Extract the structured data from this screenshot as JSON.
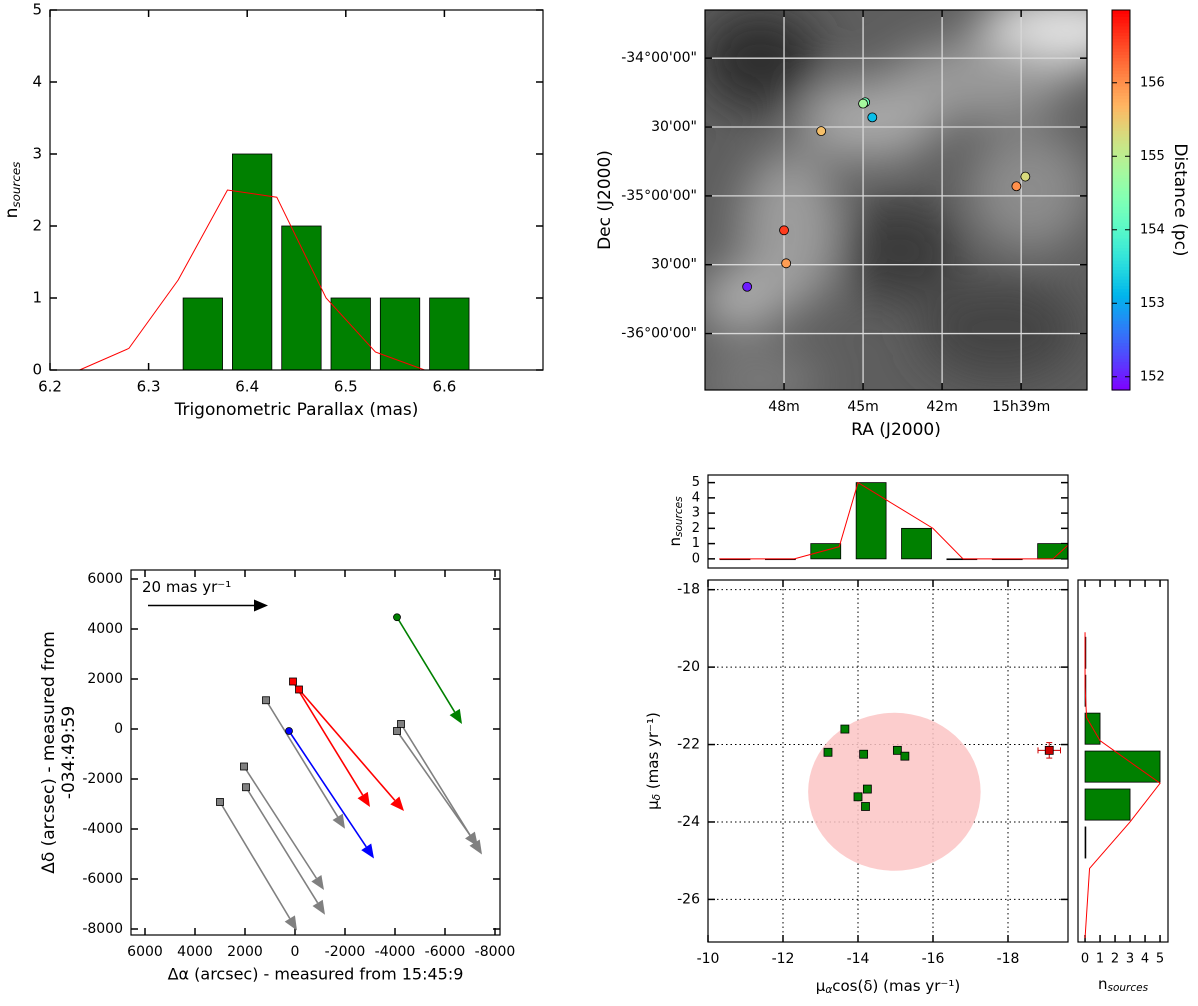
{
  "chart_data": [
    {
      "type": "histogram",
      "bins": [
        6.33,
        6.38,
        6.43,
        6.48,
        6.53,
        6.58,
        6.63
      ],
      "counts": [
        1,
        3,
        2,
        1,
        1,
        1
      ],
      "rwidth": 0.8,
      "color": "#008000",
      "xlim": [
        6.2,
        6.7
      ],
      "ylim": [
        0,
        5
      ],
      "xticks": [
        6.2,
        6.3,
        6.4,
        6.5,
        6.6
      ],
      "yticks": [
        0,
        1,
        2,
        3,
        4,
        5
      ],
      "xlabel": "Trigonometric Parallax (mas)",
      "ylabel": {
        "base": "n",
        "sub": "sources"
      },
      "curve": {
        "color": "#ff0000",
        "x": [
          6.23,
          6.28,
          6.33,
          6.38,
          6.43,
          6.48,
          6.53,
          6.58,
          6.63,
          6.68
        ],
        "y": [
          0,
          0.3,
          1.25,
          2.5,
          2.4,
          1.0,
          0.25,
          0,
          0,
          0
        ]
      }
    },
    {
      "type": "sky_map",
      "x": [
        44.92,
        45.0,
        44.65,
        46.59,
        38.84,
        39.18,
        48.0,
        47.92,
        49.4
      ],
      "y": [
        -34.32,
        -34.33,
        -34.43,
        -34.53,
        -34.86,
        -34.93,
        -35.25,
        -35.49,
        -35.66
      ],
      "values": [
        154.3,
        154.8,
        153.2,
        155.6,
        155.3,
        156.0,
        156.6,
        155.9,
        152.0
      ],
      "colormap": "rainbow",
      "clim": [
        151.82,
        156.99
      ],
      "cticks": [
        152,
        153,
        154,
        155,
        156
      ],
      "clabel": "Distance (pc)",
      "xlim": [
        51,
        36.5
      ],
      "ylim": [
        -36.41,
        -33.65
      ],
      "xticks": [
        {
          "value": 48,
          "label": "48m"
        },
        {
          "value": 45,
          "label": "45m"
        },
        {
          "value": 42,
          "label": "42m"
        },
        {
          "value": 39,
          "label": "15h39m"
        }
      ],
      "yticks": [
        {
          "value": -34,
          "label": "-34°00'00\""
        },
        {
          "value": -34.5,
          "label": "30'00\""
        },
        {
          "value": -35,
          "label": "-35°00'00\""
        },
        {
          "value": -35.5,
          "label": "30'00\""
        },
        {
          "value": -36,
          "label": "-36°00'00\""
        }
      ],
      "grid": "solid",
      "xlabel": "RA (J2000)",
      "ylabel": "Dec (J2000)"
    },
    {
      "type": "quiver",
      "x0": [
        -4080,
        80,
        -160,
        1160,
        240,
        -4240,
        -4080,
        2040,
        1960,
        3000
      ],
      "y0": [
        4470,
        1900,
        1580,
        1150,
        -80,
        200,
        -80,
        -1500,
        -2330,
        -2920
      ],
      "x1": [
        -6680,
        -3000,
        -4360,
        -2000,
        -3160,
        -7480,
        -7320,
        -1160,
        -1200,
        -80
      ],
      "y1": [
        200,
        -3120,
        -3280,
        -3990,
        -5180,
        -5020,
        -4700,
        -6440,
        -7430,
        -8060
      ],
      "colors": [
        "#008000",
        "#ff0000",
        "#ff0000",
        "#808080",
        "#0000ff",
        "#808080",
        "#808080",
        "#808080",
        "#808080",
        "#808080"
      ],
      "markers": [
        "circle",
        "square",
        "square",
        "square",
        "circle",
        "square",
        "square",
        "square",
        "square",
        "square"
      ],
      "key": {
        "label": "20 mas yr⁻¹",
        "x0": 5880,
        "x1": 1080,
        "y": 4940,
        "color": "#000000"
      },
      "xlim": [
        6560,
        -8200
      ],
      "ylim": [
        -8240,
        6360
      ],
      "xticks": [
        6000,
        4000,
        2000,
        0,
        -2000,
        -4000,
        -6000,
        -8000
      ],
      "yticks": [
        -8000,
        -6000,
        -4000,
        -2000,
        0,
        2000,
        4000,
        6000
      ],
      "xlabel": "Δα (arcsec) - measured from 15:45:9",
      "ylabel": [
        "Δδ (arcsec) - measured from",
        "-034:49:59"
      ]
    },
    {
      "type": "scatter",
      "x": [
        -13.2,
        -13.65,
        -14.15,
        -14.25,
        -14.0,
        -14.2,
        -15.05,
        -15.25
      ],
      "y": [
        -22.2,
        -21.6,
        -22.25,
        -23.15,
        -23.35,
        -23.6,
        -22.15,
        -22.3
      ],
      "color": "#008000",
      "errorbar": {
        "x": -19.1,
        "y": -22.15,
        "xerr": 0.3,
        "yerr": 0.2,
        "color": "#cc0000"
      },
      "ellipse": {
        "cx": -14.97,
        "cy": -23.22,
        "rx": 2.3,
        "ry": 2.04,
        "color": "#fbc4c4"
      },
      "xlim": [
        -10,
        -19.6
      ],
      "ylim": [
        -27.1,
        -17.75
      ],
      "xticks": [
        -10,
        -12,
        -14,
        -16,
        -18
      ],
      "yticks": [
        -18,
        -20,
        -22,
        -24,
        -26
      ],
      "grid": "dotted",
      "xlabel": {
        "base": "μ",
        "sub": "α",
        "rest": "cos(δ) (mas yr⁻¹)"
      },
      "ylabel": {
        "base": "μ",
        "sub": "δ",
        "rest": " (mas yr⁻¹)"
      }
    },
    {
      "type": "histogram",
      "bins": [
        -10.115,
        -11.325,
        -12.535,
        -13.745,
        -14.955,
        -16.165,
        -17.375,
        -18.585,
        -19.795
      ],
      "counts": [
        0,
        0,
        1,
        5,
        2,
        0,
        0,
        1
      ],
      "rwidth": 0.66,
      "color": "#008000",
      "xlim": [
        -10,
        -19.6
      ],
      "ylim": [
        -0.6,
        5.5
      ],
      "yticks": [
        0,
        1,
        2,
        3,
        4,
        5
      ],
      "ylabel": {
        "base": "n",
        "sub": "sources"
      },
      "curve": {
        "color": "#ff0000",
        "x": [
          -10.3,
          -12.3,
          -13.5,
          -14.0,
          -16.0,
          -16.8,
          -19.2,
          -19.6
        ],
        "y": [
          0,
          0,
          0.8,
          5,
          2,
          0,
          0,
          0.9
        ]
      }
    },
    {
      "type": "histogram",
      "orientation": "horizontal",
      "bins": [
        -19.14,
        -20.12,
        -21.1,
        -22.08,
        -23.06,
        -24.04,
        -25.02
      ],
      "counts": [
        0,
        0,
        1,
        5,
        3,
        0
      ],
      "rwidth": 0.82,
      "color": "#008000",
      "xlim": [
        -0.47,
        5.53
      ],
      "ylim": [
        -27.1,
        -17.75
      ],
      "xticks": [
        0,
        1,
        2,
        3,
        4,
        5
      ],
      "xlabel": {
        "base": "n",
        "sub": "sources"
      },
      "curve": {
        "color": "#ff0000",
        "x": [
          0,
          0,
          0.1,
          1,
          5,
          3,
          0.3,
          0
        ],
        "y": [
          -19.1,
          -20.5,
          -21.3,
          -21.9,
          -23.0,
          -24.0,
          -25.2,
          -27.0
        ]
      }
    }
  ]
}
